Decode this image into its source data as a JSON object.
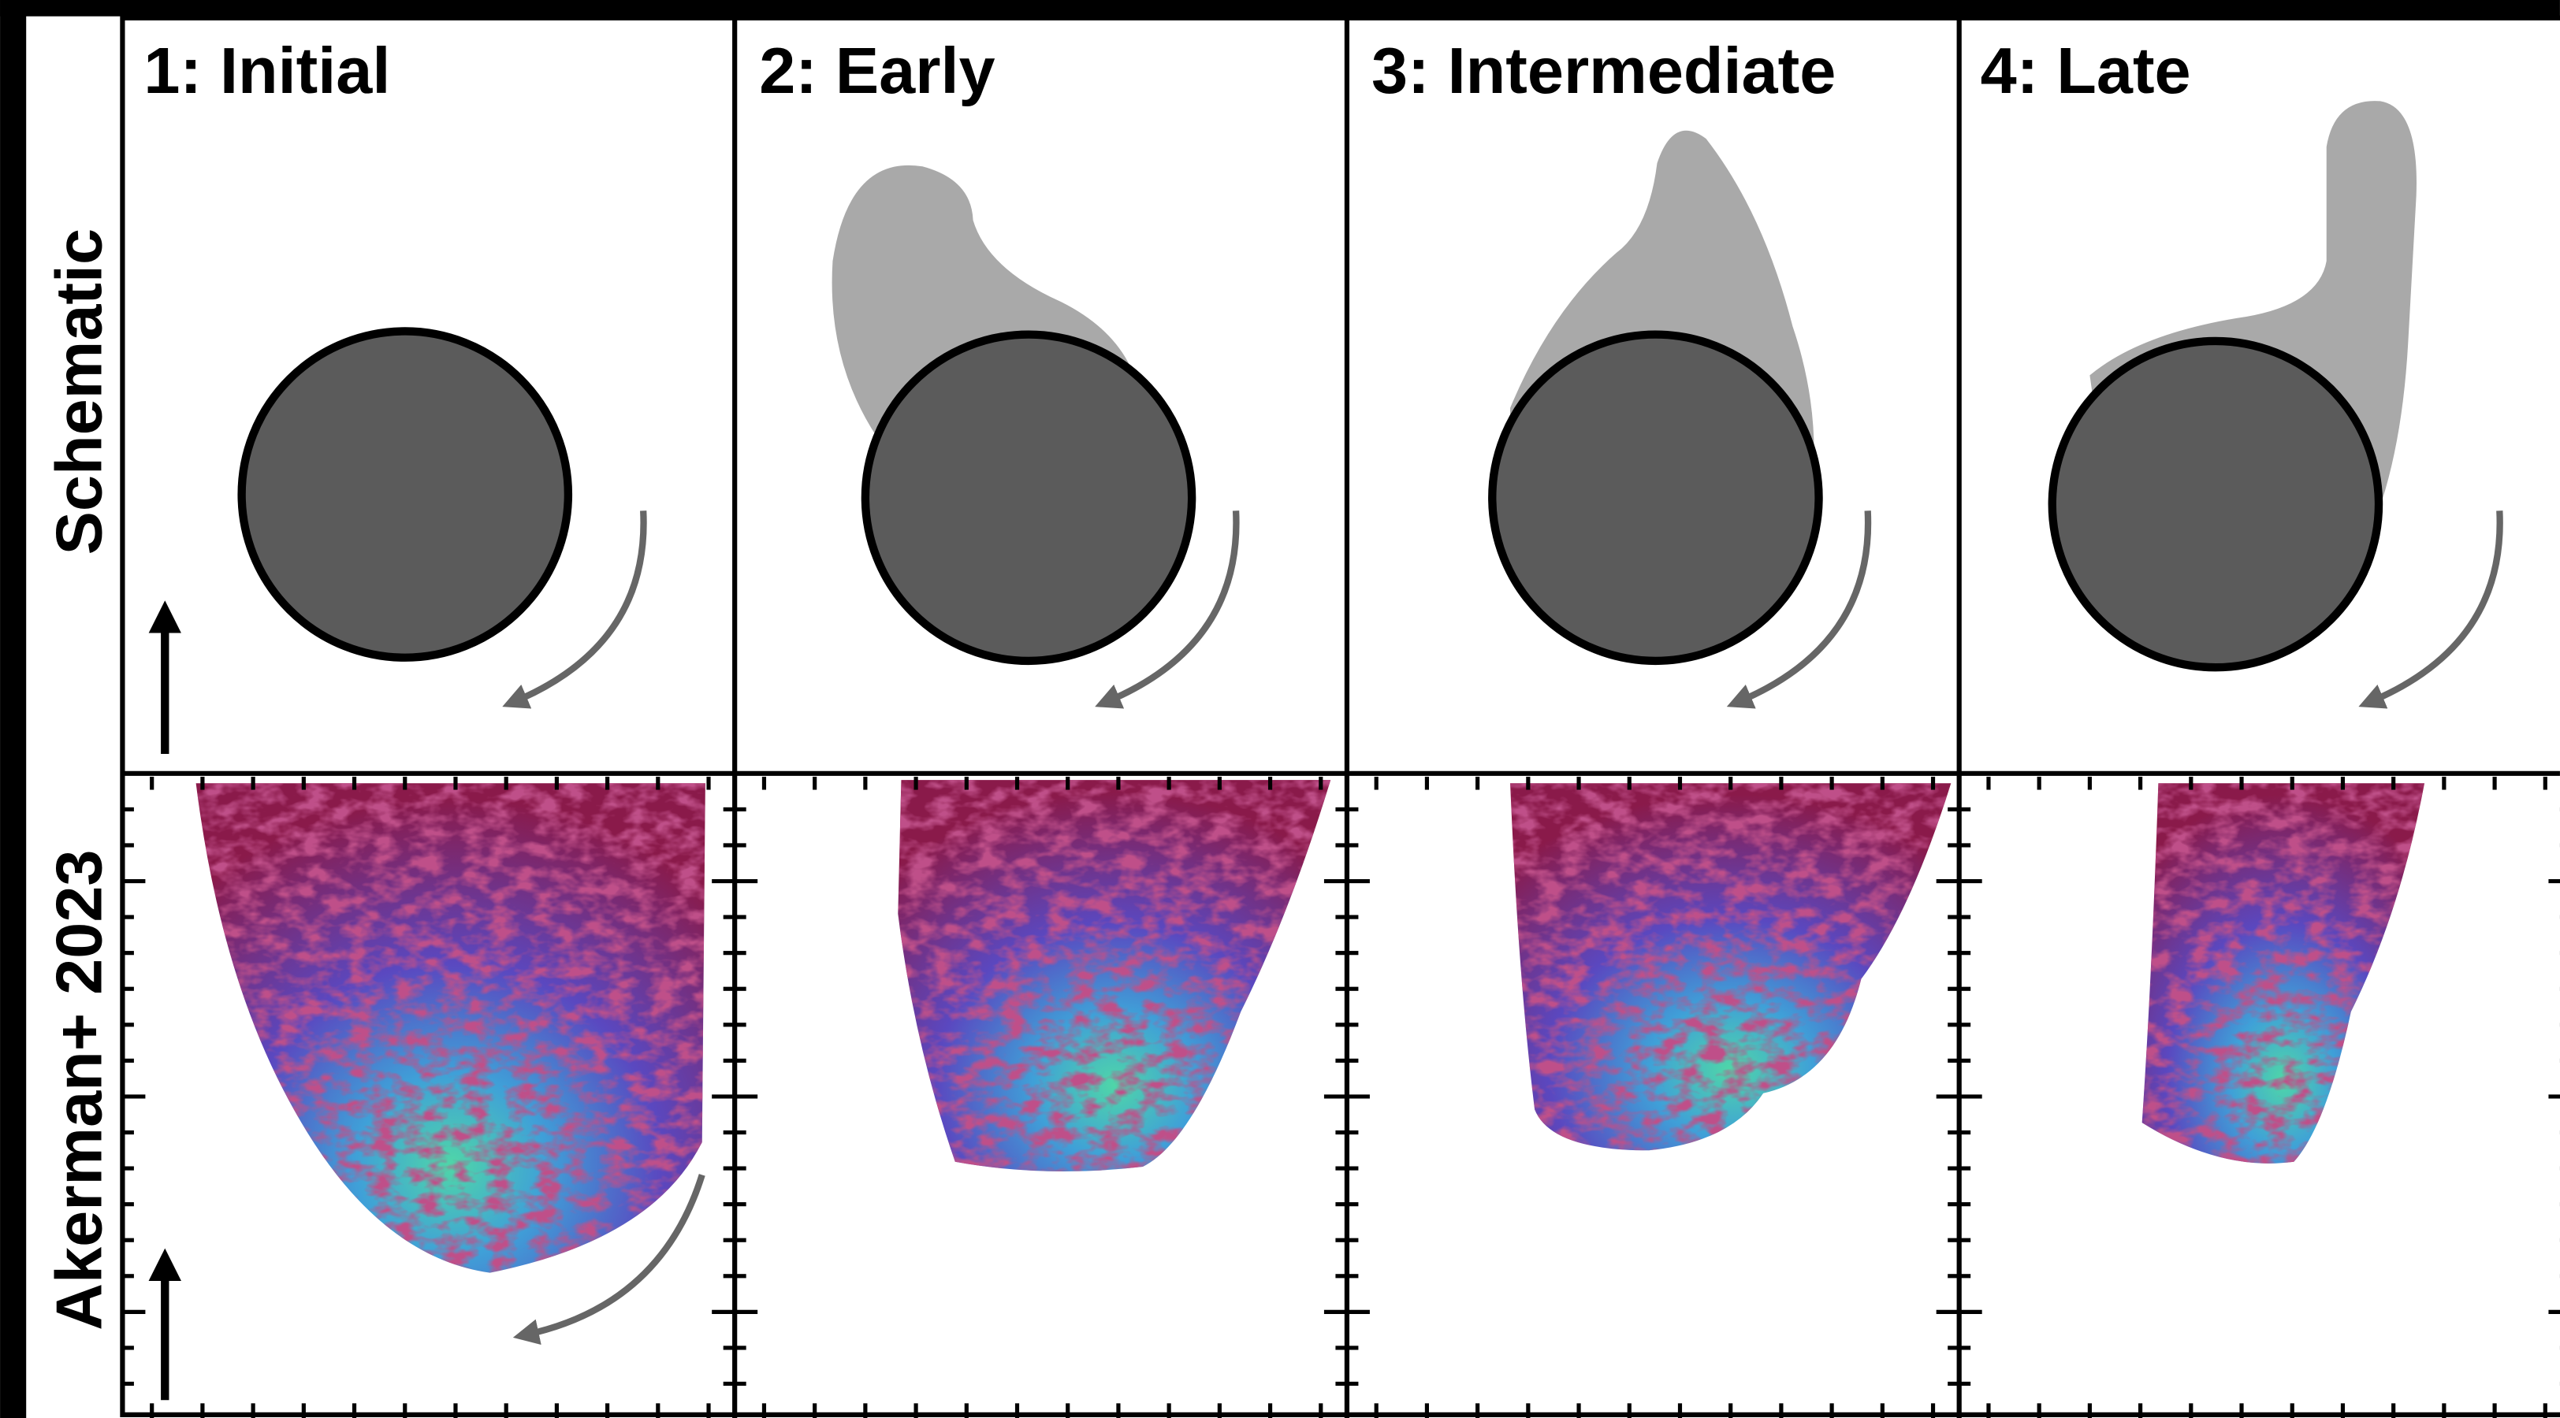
{
  "panels": [
    {
      "title": "1: Initial"
    },
    {
      "title": "2: Early"
    },
    {
      "title": "3: Intermediate"
    },
    {
      "title": "4: Late"
    }
  ],
  "rows": [
    {
      "label": "Schematic"
    },
    {
      "label": "Akerman+ 2023"
    }
  ]
}
